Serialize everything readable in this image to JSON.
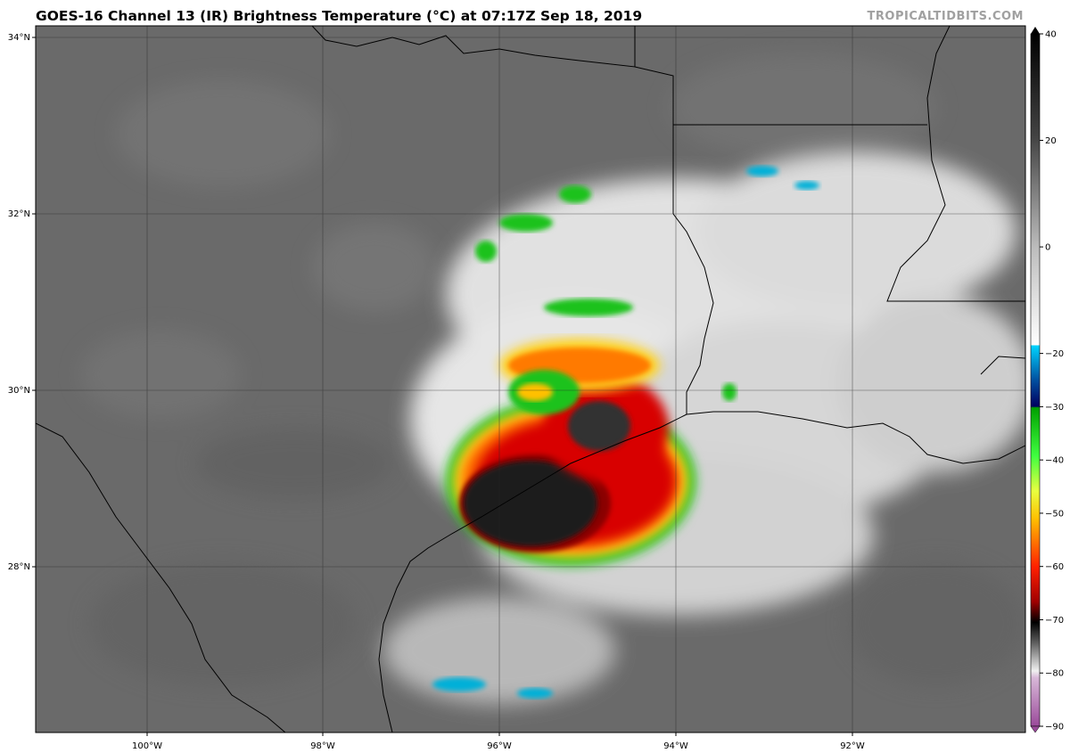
{
  "title": "GOES-16 Channel 13 (IR) Brightness Temperature (°C) at 07:17Z Sep 18, 2019",
  "watermark": "TROPICALTIDBITS.COM",
  "lat_labels": [
    "34°N",
    "32°N",
    "30°N",
    "28°N"
  ],
  "lon_labels": [
    "100°W",
    "98°W",
    "96°W",
    "94°W",
    "92°W"
  ],
  "colorbar": {
    "min": -90,
    "max": 40,
    "tick_labels": [
      "40",
      "20",
      "0",
      "−20",
      "−30",
      "−40",
      "−50",
      "−60",
      "−70",
      "−80",
      "−90"
    ],
    "tick_values": [
      40,
      20,
      0,
      -20,
      -30,
      -40,
      -50,
      -60,
      -70,
      -80,
      -90
    ]
  },
  "colors": {
    "land_gray": "#6e6e6e",
    "cloud_white": "#f2f2f2",
    "cold_green": "#1fc21f",
    "cold_yellow": "#ffd21a",
    "cold_red": "#d80000",
    "coldest_black": "#1a1a1a"
  }
}
